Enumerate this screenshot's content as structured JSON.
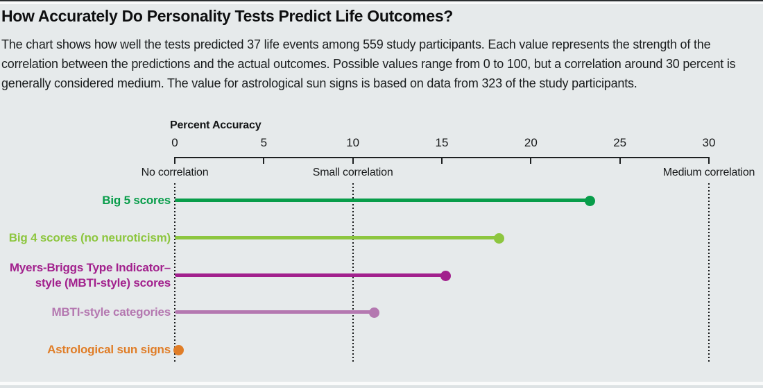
{
  "page": {
    "title": "How Accurately Do Personality Tests Predict Life Outcomes?",
    "subtitle": "The chart shows how well the tests predicted 37 life events among 559 study participants. Each value represents the strength of the correlation between the predictions and the actual outcomes. Possible values range from 0 to 100, but a correlation around 30 percent is generally considered medium. The value for astrological sun signs is based on data from 323 of the study participants."
  },
  "chart_data": {
    "type": "bar",
    "subtype": "horizontal-lollipop",
    "axis_title": "Percent Accuracy",
    "xlabel": "Percent Accuracy",
    "ylabel": "",
    "xlim": [
      0,
      30
    ],
    "ticks": [
      0,
      5,
      10,
      15,
      20,
      25,
      30
    ],
    "grid": "dotted vertical reference lines only",
    "legend": "none",
    "reference_lines": [
      {
        "x": 0,
        "label": "No correlation"
      },
      {
        "x": 10,
        "label": "Small correlation"
      },
      {
        "x": 30,
        "label": "Medium correlation"
      }
    ],
    "categories": [
      "Big 5 scores",
      "Big 4 scores (no neuroticism)",
      "Myers-Briggs Type Indicator–\nstyle (MBTI-style) scores",
      "MBTI-style categories",
      "Astrological sun signs"
    ],
    "values": [
      23.3,
      18.2,
      15.2,
      11.2,
      0.2
    ],
    "colors": [
      "#089d4a",
      "#8dc63f",
      "#a2218d",
      "#b478b0",
      "#e07d27"
    ],
    "axis_color": "#1d2021",
    "background_color": "#e6eaeb"
  }
}
